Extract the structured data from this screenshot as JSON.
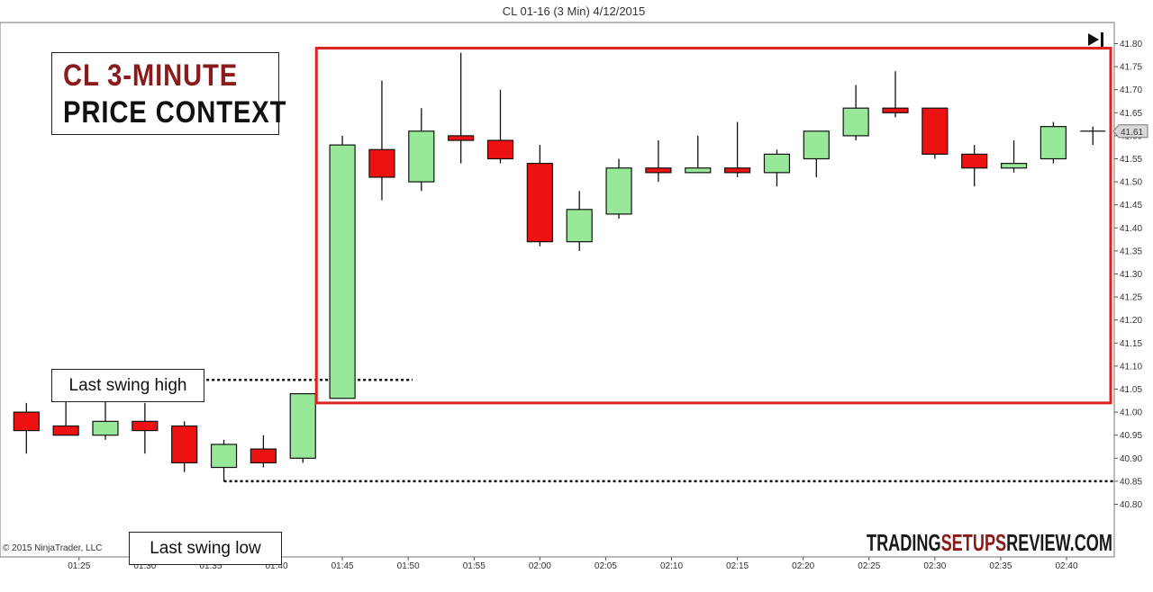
{
  "chart_data": {
    "type": "candlestick",
    "title": "CL 01-16 (3 Min)  4/12/2015",
    "copyright": "© 2015 NinjaTrader, LLC",
    "watermark": {
      "part1": "TRADING",
      "part2": "SETUPS",
      "part3": "REVIEW.COM"
    },
    "annotation_title": {
      "line1": "CL 3-MINUTE",
      "line2": "PRICE CONTEXT"
    },
    "swing_high_label": "Last swing  high",
    "swing_low_label": "Last swing  low",
    "last_price_label": "41.61",
    "ylim": [
      40.78,
      41.83
    ],
    "y_ticks": [
      "41.80",
      "41.75",
      "41.70",
      "41.65",
      "41.60",
      "41.55",
      "41.50",
      "41.45",
      "41.40",
      "41.35",
      "41.30",
      "41.25",
      "41.20",
      "41.15",
      "41.10",
      "41.05",
      "41.00",
      "40.95",
      "40.90",
      "40.85",
      "40.80"
    ],
    "x_tick_labels": [
      "01:25",
      "01:30",
      "01:35",
      "01:40",
      "01:45",
      "01:50",
      "01:55",
      "02:00",
      "02:05",
      "02:10",
      "02:15",
      "02:20",
      "02:25",
      "02:30",
      "02:35",
      "02:40"
    ],
    "candles": [
      {
        "time": "01:21",
        "open": 41.0,
        "high": 41.02,
        "low": 40.91,
        "close": 40.96
      },
      {
        "time": "01:24",
        "open": 40.97,
        "high": 41.07,
        "low": 40.95,
        "close": 40.95
      },
      {
        "time": "01:27",
        "open": 40.95,
        "high": 41.03,
        "low": 40.94,
        "close": 40.98
      },
      {
        "time": "01:30",
        "open": 40.98,
        "high": 41.02,
        "low": 40.91,
        "close": 40.96
      },
      {
        "time": "01:33",
        "open": 40.97,
        "high": 40.98,
        "low": 40.87,
        "close": 40.89
      },
      {
        "time": "01:36",
        "open": 40.88,
        "high": 40.94,
        "low": 40.85,
        "close": 40.93
      },
      {
        "time": "01:39",
        "open": 40.92,
        "high": 40.95,
        "low": 40.88,
        "close": 40.89
      },
      {
        "time": "01:42",
        "open": 40.9,
        "high": 41.04,
        "low": 40.89,
        "close": 41.04
      },
      {
        "time": "01:45",
        "open": 41.03,
        "high": 41.6,
        "low": 41.03,
        "close": 41.58
      },
      {
        "time": "01:48",
        "open": 41.57,
        "high": 41.72,
        "low": 41.46,
        "close": 41.51
      },
      {
        "time": "01:51",
        "open": 41.5,
        "high": 41.66,
        "low": 41.48,
        "close": 41.61
      },
      {
        "time": "01:54",
        "open": 41.6,
        "high": 41.78,
        "low": 41.54,
        "close": 41.59
      },
      {
        "time": "01:57",
        "open": 41.59,
        "high": 41.7,
        "low": 41.54,
        "close": 41.55
      },
      {
        "time": "02:00",
        "open": 41.54,
        "high": 41.58,
        "low": 41.36,
        "close": 41.37
      },
      {
        "time": "02:03",
        "open": 41.37,
        "high": 41.48,
        "low": 41.35,
        "close": 41.44
      },
      {
        "time": "02:06",
        "open": 41.43,
        "high": 41.55,
        "low": 41.42,
        "close": 41.53
      },
      {
        "time": "02:09",
        "open": 41.53,
        "high": 41.59,
        "low": 41.5,
        "close": 41.52
      },
      {
        "time": "02:12",
        "open": 41.52,
        "high": 41.6,
        "low": 41.52,
        "close": 41.53
      },
      {
        "time": "02:15",
        "open": 41.53,
        "high": 41.63,
        "low": 41.51,
        "close": 41.52
      },
      {
        "time": "02:18",
        "open": 41.52,
        "high": 41.57,
        "low": 41.49,
        "close": 41.56
      },
      {
        "time": "02:21",
        "open": 41.55,
        "high": 41.61,
        "low": 41.51,
        "close": 41.61
      },
      {
        "time": "02:24",
        "open": 41.6,
        "high": 41.71,
        "low": 41.59,
        "close": 41.66
      },
      {
        "time": "02:27",
        "open": 41.66,
        "high": 41.74,
        "low": 41.64,
        "close": 41.65
      },
      {
        "time": "02:30",
        "open": 41.66,
        "high": 41.66,
        "low": 41.55,
        "close": 41.56
      },
      {
        "time": "02:33",
        "open": 41.56,
        "high": 41.58,
        "low": 41.49,
        "close": 41.53
      },
      {
        "time": "02:36",
        "open": 41.53,
        "high": 41.59,
        "low": 41.52,
        "close": 41.54
      },
      {
        "time": "02:39",
        "open": 41.55,
        "high": 41.63,
        "low": 41.54,
        "close": 41.62
      },
      {
        "time": "02:42",
        "open": 41.61,
        "high": 41.62,
        "low": 41.58,
        "close": 41.61
      }
    ],
    "swing_high_price": 41.07,
    "swing_low_price": 40.85,
    "highlight_box": {
      "price_top": 41.8,
      "price_bottom": 41.02,
      "start": "01:42",
      "end": "02:45"
    },
    "colors": {
      "up": "#98e89a",
      "down": "#ee1111",
      "box": "#dd2222",
      "brand_dark": "#1a1a1a",
      "brand_red": "#8b1a1a"
    }
  }
}
